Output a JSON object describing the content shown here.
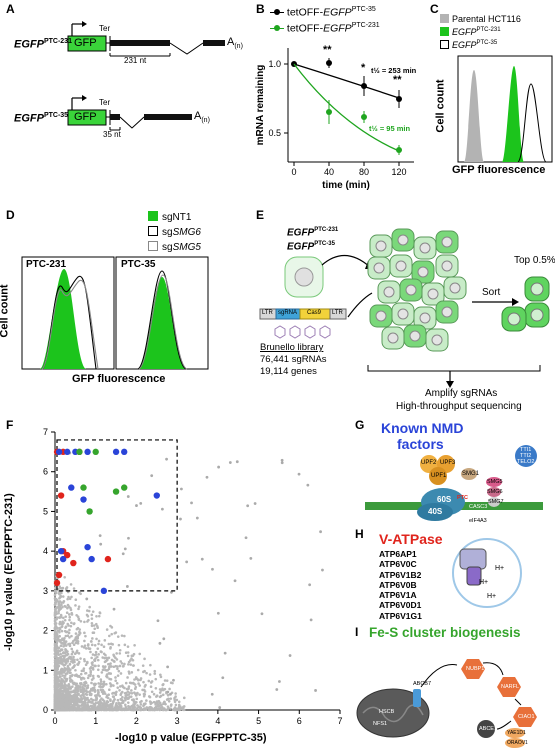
{
  "panel_labels": [
    "A",
    "B",
    "C",
    "D",
    "E",
    "F",
    "G",
    "H",
    "I"
  ],
  "panel_a": {
    "construct1": {
      "gene": "EGFP",
      "sup": "PTC-231",
      "box": "GFP",
      "ter": "Ter",
      "tail": "A",
      "tail_sub": "(n)",
      "spacing": "231 nt"
    },
    "construct2": {
      "gene": "EGFP",
      "sup": "PTC-35",
      "box": "GFP",
      "ter": "Ter",
      "tail": "A",
      "tail_sub": "(n)",
      "spacing": "35 nt"
    }
  },
  "panel_b": {
    "legend": [
      {
        "prefix": "tetOFF-",
        "gene": "EGFP",
        "sup": "PTC-35",
        "color": "#000000"
      },
      {
        "prefix": "tetOFF-",
        "gene": "EGFP",
        "sup": "PTC-231",
        "color": "#1fa51f"
      }
    ],
    "annotations": [
      "t½ = 253 min",
      "t½ = 95 min"
    ],
    "sig_marks": [
      "**",
      "*",
      "**"
    ]
  },
  "panel_c": {
    "legend": [
      {
        "label": "Parental HCT116",
        "color": "#b3b3b3",
        "fill": true
      },
      {
        "gene": "EGFP",
        "sup": "PTC-231",
        "color": "#1cc41c",
        "fill": true
      },
      {
        "gene": "EGFP",
        "sup": "PTC-35",
        "color": "#000000",
        "fill": false
      }
    ],
    "ylabel": "Cell count",
    "xlabel": "GFP fluorescence"
  },
  "panel_d": {
    "legend": [
      {
        "label": "sgNT1",
        "color": "#1cc41c",
        "fill": true
      },
      {
        "prefix": "sg",
        "gene": "SMG6",
        "color": "#000000",
        "fill": false
      },
      {
        "prefix": "sg",
        "gene": "SMG5",
        "color": "#888888",
        "fill": false
      }
    ],
    "subpanels": [
      "PTC-231",
      "PTC-35"
    ],
    "ylabel": "Cell count",
    "xlabel": "GFP fluorescence"
  },
  "panel_e": {
    "gene1": {
      "gene": "EGFP",
      "sup": "PTC-231"
    },
    "gene2": {
      "gene": "EGFP",
      "sup": "PTC-35"
    },
    "vector": [
      "LTR",
      "sgRNA",
      "Cas9",
      "LTR"
    ],
    "library_title": "Brunello library",
    "library_lines": [
      "76,441 sgRNAs",
      "19,114 genes"
    ],
    "sort": "Sort",
    "top": "Top 0.5%",
    "bottom_lines": [
      "Amplify sgRNAs",
      "High-throughput sequencing"
    ]
  },
  "panel_g": {
    "title_lines": [
      "Known NMD",
      "factors"
    ],
    "title_color": "#2a44d8",
    "factors": [
      "UPF2",
      "UPF3",
      "UPF1",
      "SMG1",
      "TTI1",
      "TTI2",
      "TELO2",
      "SMG5",
      "SMG6",
      "SMG7",
      "CASC3",
      "RBM8A",
      "eIF4A3",
      "60S",
      "40S",
      "PTC"
    ]
  },
  "panel_h": {
    "title": "V-ATPase",
    "title_color": "#e0241c",
    "genes": [
      "ATP6AP1",
      "ATP6V0C",
      "ATP6V1B2",
      "ATP6V0B",
      "ATP6V1A",
      "ATP6V0D1",
      "ATP6V1G1"
    ],
    "ion": "H+"
  },
  "panel_i": {
    "title": "Fe-S cluster biogenesis",
    "title_color": "#36a52d",
    "factors": [
      "ABCB7",
      "HSCB",
      "NFS1",
      "NUBP1",
      "NARFL",
      "CIAO1",
      "ABCE1",
      "YAE1D1",
      "ORAOV1"
    ]
  },
  "chart_data": {
    "type": "scatter",
    "title": "",
    "ylabel": "-log10 p value (EGFPPTC-231)",
    "xlabel": "-log10 p value (EGFPPTC-35)",
    "xlim": [
      0,
      7
    ],
    "ylim": [
      0,
      7
    ],
    "xticks": [
      "0",
      "1",
      "2",
      "3",
      "4",
      "5",
      "6",
      "7"
    ],
    "yticks": [
      "0",
      "1",
      "2",
      "3",
      "4",
      "5",
      "6",
      "7"
    ],
    "threshold": 3,
    "series": [
      {
        "color": "#e0241c",
        "points": [
          [
            0.05,
            6.5
          ],
          [
            0.2,
            6.5
          ],
          [
            0.6,
            6.5
          ],
          [
            0.15,
            5.4
          ],
          [
            0.2,
            4.0
          ],
          [
            0.3,
            3.9
          ],
          [
            0.45,
            3.7
          ],
          [
            1.3,
            3.8
          ],
          [
            0.1,
            3.4
          ],
          [
            0.05,
            3.2
          ]
        ]
      },
      {
        "color": "#2a44d8",
        "points": [
          [
            0.1,
            6.5
          ],
          [
            0.3,
            6.5
          ],
          [
            0.5,
            6.5
          ],
          [
            0.8,
            6.5
          ],
          [
            1.5,
            6.5
          ],
          [
            1.7,
            6.5
          ],
          [
            0.4,
            5.6
          ],
          [
            0.7,
            5.3
          ],
          [
            2.5,
            5.4
          ],
          [
            0.15,
            4.0
          ],
          [
            0.2,
            3.8
          ],
          [
            0.8,
            4.1
          ],
          [
            0.9,
            3.8
          ],
          [
            1.2,
            3.0
          ]
        ]
      },
      {
        "color": "#36a52d",
        "points": [
          [
            0.6,
            6.5
          ],
          [
            1.0,
            6.5
          ],
          [
            0.7,
            5.6
          ],
          [
            1.5,
            5.5
          ],
          [
            1.7,
            5.6
          ],
          [
            0.85,
            5.0
          ]
        ]
      }
    ]
  }
}
